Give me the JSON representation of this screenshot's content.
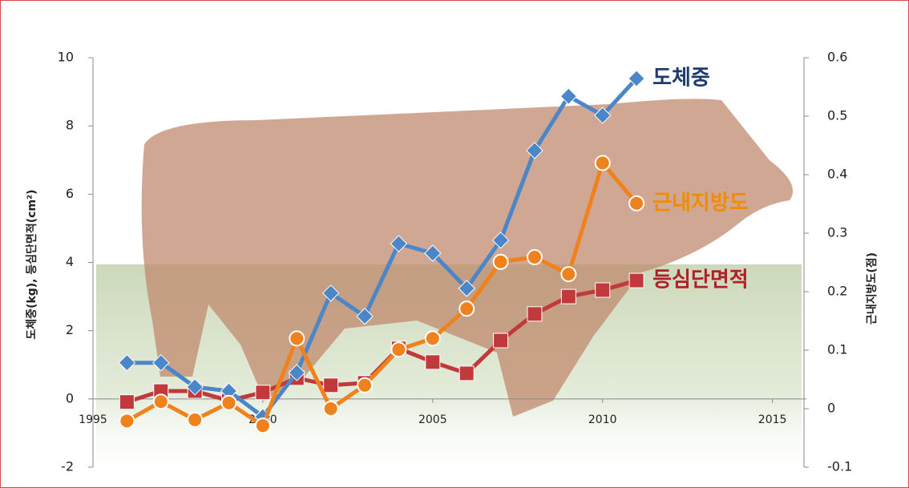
{
  "chart_data": {
    "type": "line",
    "y_label": "도체중(kg), 등심단면적(cm²)",
    "y2_label": "근내지방도(점)",
    "xlim": [
      1995,
      2016
    ],
    "xticks": [
      1995,
      2000,
      2005,
      2010,
      2015
    ],
    "ylim": [
      -2,
      10
    ],
    "yticks": [
      -2,
      0,
      2,
      4,
      6,
      8,
      10
    ],
    "y2lim": [
      -0.1,
      0.6
    ],
    "y2ticks": [
      -0.1,
      0,
      0.1,
      0.2,
      0.3,
      0.4,
      0.5,
      0.6
    ],
    "x": [
      1996,
      1997,
      1998,
      1999,
      2000,
      2001,
      2002,
      2003,
      2004,
      2005,
      2006,
      2007,
      2008,
      2009,
      2010,
      2011
    ],
    "series": [
      {
        "name": "도체중",
        "color": "#4a86c8",
        "label_color": "#1f3a6e",
        "marker": "diamond",
        "values": [
          1.06,
          1.06,
          0.35,
          0.23,
          -0.52,
          0.77,
          3.1,
          2.42,
          4.55,
          4.27,
          3.24,
          4.65,
          7.28,
          8.87,
          8.31,
          9.39
        ]
      },
      {
        "name": "근내지방도",
        "color": "#f0821e",
        "label_color": "#f08c00",
        "marker": "circle",
        "axis": "y2",
        "values": [
          -0.021,
          0.012,
          -0.019,
          0.01,
          -0.029,
          0.12,
          0.0,
          0.04,
          0.101,
          0.12,
          0.171,
          0.251,
          0.259,
          0.23,
          0.42,
          0.351
        ]
      },
      {
        "name": "등심단면적",
        "color": "#c0393b",
        "label_color": "#b0202a",
        "marker": "square",
        "values": [
          -0.09,
          0.23,
          0.23,
          -0.05,
          0.19,
          0.61,
          0.4,
          0.47,
          1.48,
          1.08,
          0.75,
          1.71,
          2.49,
          3.0,
          3.19,
          3.47
        ]
      }
    ]
  }
}
